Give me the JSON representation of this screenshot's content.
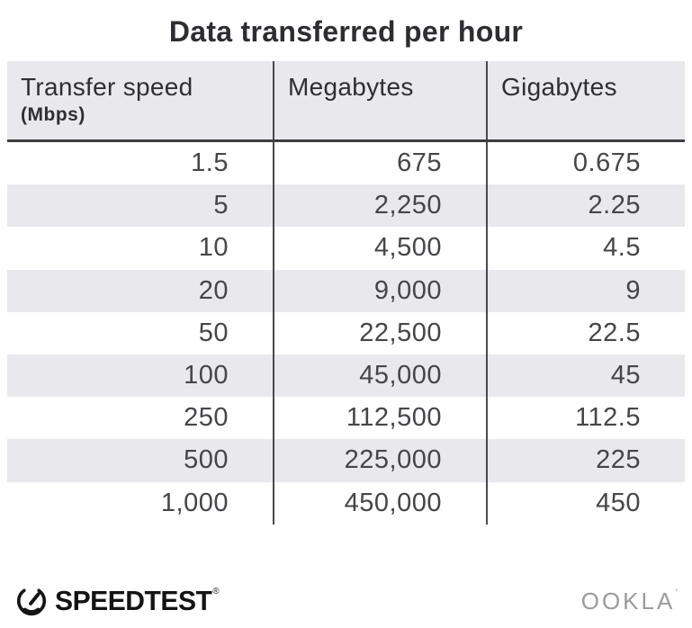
{
  "title": "Data transferred per hour",
  "chart_data": {
    "type": "table",
    "title": "Data transferred per hour",
    "columns": [
      "Transfer speed (Mbps)",
      "Megabytes",
      "Gigabytes"
    ],
    "rows": [
      [
        "1.5",
        "675",
        "0.675"
      ],
      [
        "5",
        "2,250",
        "2.25"
      ],
      [
        "10",
        "4,500",
        "4.5"
      ],
      [
        "20",
        "9,000",
        "9"
      ],
      [
        "50",
        "22,500",
        "22.5"
      ],
      [
        "100",
        "45,000",
        "45"
      ],
      [
        "250",
        "112,500",
        "112.5"
      ],
      [
        "500",
        "225,000",
        "225"
      ],
      [
        "1,000",
        "450,000",
        "450"
      ]
    ]
  },
  "table": {
    "header": {
      "col1_label": "Transfer speed",
      "col1_sublabel": "(Mbps)",
      "col2_label": "Megabytes",
      "col3_label": "Gigabytes"
    }
  },
  "footer": {
    "speedtest_label": "SPEEDTEST",
    "speedtest_mark": "®",
    "ookla_label": "OOKLA",
    "ookla_mark": "’"
  },
  "colors": {
    "header_bg": "#e9e9ed",
    "row_alt_bg": "#e9e9ed",
    "divider": "#4a4a4c",
    "header_border": "#3e3e40",
    "title": "#2d2d32",
    "header_text": "#2e2e33",
    "body_text": "#45454a",
    "speedtest": "#141414",
    "ookla": "#9b9b9b"
  }
}
